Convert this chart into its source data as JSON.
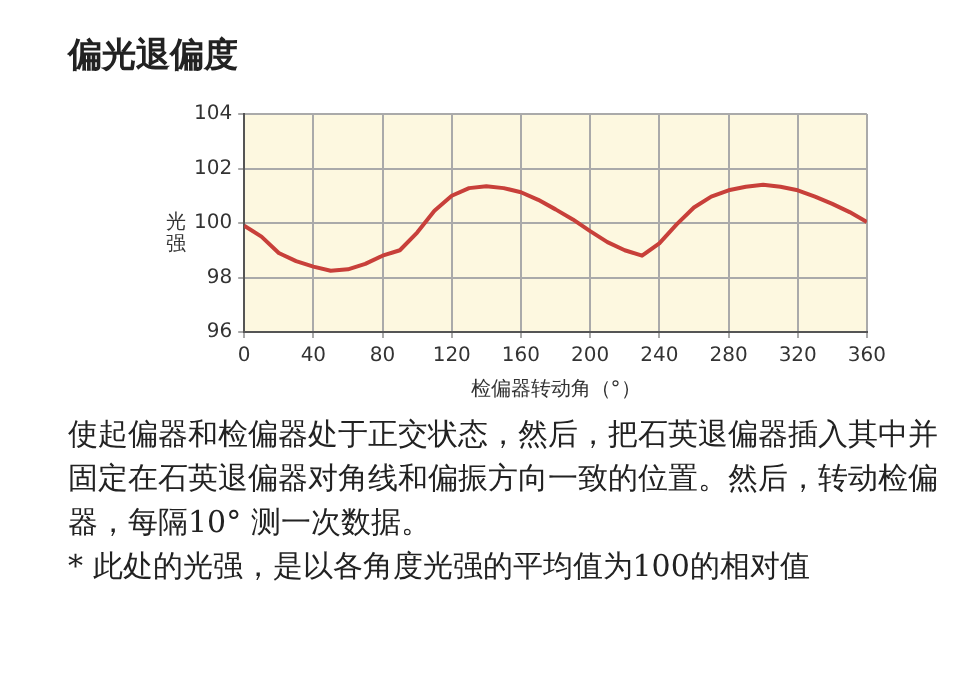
{
  "chart_data": {
    "type": "line",
    "title": "偏光退偏度",
    "xlabel": "检偏器转动角（°）",
    "ylabel": "光强",
    "x": [
      0,
      10,
      20,
      30,
      40,
      50,
      60,
      70,
      80,
      90,
      100,
      110,
      120,
      130,
      140,
      150,
      160,
      170,
      180,
      190,
      200,
      210,
      220,
      230,
      240,
      250,
      260,
      270,
      280,
      290,
      300,
      310,
      320,
      330,
      340,
      350,
      360
    ],
    "series": [
      {
        "color": "#c8403a",
        "values": [
          99.9,
          99.5,
          98.9,
          98.6,
          98.4,
          98.25,
          98.3,
          98.5,
          98.8,
          99.0,
          99.65,
          100.45,
          101.0,
          101.28,
          101.35,
          101.28,
          101.13,
          100.85,
          100.5,
          100.13,
          99.7,
          99.3,
          99.0,
          98.8,
          99.25,
          99.95,
          100.57,
          100.97,
          101.2,
          101.33,
          101.4,
          101.33,
          101.2,
          100.97,
          100.7,
          100.4,
          100.04
        ]
      }
    ],
    "xlim": [
      0,
      360
    ],
    "xticks": [
      0,
      40,
      80,
      120,
      160,
      200,
      240,
      280,
      320,
      360
    ],
    "ylim": [
      96,
      104
    ],
    "yticks": [
      96,
      98,
      100,
      102,
      104
    ],
    "grid": true,
    "legend": false,
    "marker": "none",
    "line_style": "solid",
    "annotations": [
      "使起偏器和检偏器处于正交状态，然后，把石英退偏器插入其中并固定在石英退偏器对角线和偏振方向一致的位置。然后，转动检偏器，每隔10° 测一次数据。",
      "* 此处的光强，是以各角度光强的平均值为100的相对值"
    ]
  }
}
